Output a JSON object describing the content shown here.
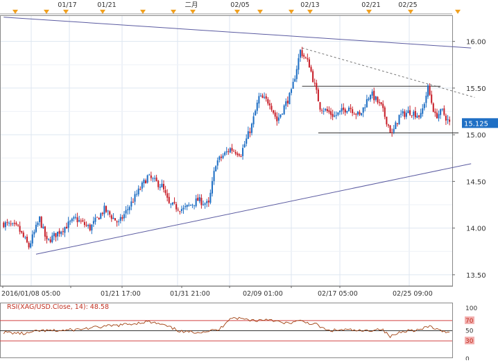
{
  "chart_data": [
    {
      "type": "candlestick",
      "instrument": "XAG/USD",
      "event_markers": [
        "01/17",
        "01/21",
        "二月",
        "02/05",
        "02/13",
        "02/21",
        "02/25"
      ],
      "x_tick_labels": [
        "2016/01/08 05:00",
        "01/21 17:00",
        "01/31 21:00",
        "02/09 01:00",
        "02/17 05:00",
        "02/25 09:00"
      ],
      "y_ticks": [
        13.5,
        14.0,
        14.5,
        15.0,
        15.5,
        16.0
      ],
      "y_tick_labels": [
        "13.50",
        "14.00",
        "14.50",
        "15.00",
        "15.50",
        "16.00"
      ],
      "ylim": [
        13.38,
        16.28
      ],
      "last_price": 15.125,
      "last_price_label": "15.125",
      "grid": true,
      "colors": {
        "up": "#1f6fc4",
        "down": "#c8202a",
        "trendline": "#5a5aa0",
        "level": "#333333",
        "marker": "#f0a020",
        "price_tag": "#1f6fc4"
      },
      "path_keypoints": [
        {
          "i": 0,
          "p": 14.05
        },
        {
          "i": 8,
          "p": 14.0
        },
        {
          "i": 14,
          "p": 13.8
        },
        {
          "i": 20,
          "p": 14.1
        },
        {
          "i": 24,
          "p": 13.85
        },
        {
          "i": 30,
          "p": 13.95
        },
        {
          "i": 40,
          "p": 14.1
        },
        {
          "i": 48,
          "p": 14.0
        },
        {
          "i": 56,
          "p": 14.2
        },
        {
          "i": 64,
          "p": 14.05
        },
        {
          "i": 72,
          "p": 14.3
        },
        {
          "i": 80,
          "p": 14.55
        },
        {
          "i": 88,
          "p": 14.45
        },
        {
          "i": 92,
          "p": 14.25
        },
        {
          "i": 100,
          "p": 14.2
        },
        {
          "i": 108,
          "p": 14.3
        },
        {
          "i": 114,
          "p": 14.25
        },
        {
          "i": 118,
          "p": 14.7
        },
        {
          "i": 126,
          "p": 14.85
        },
        {
          "i": 132,
          "p": 14.8
        },
        {
          "i": 138,
          "p": 15.1
        },
        {
          "i": 142,
          "p": 15.4
        },
        {
          "i": 148,
          "p": 15.35
        },
        {
          "i": 152,
          "p": 15.15
        },
        {
          "i": 160,
          "p": 15.45
        },
        {
          "i": 165,
          "p": 15.9
        },
        {
          "i": 170,
          "p": 15.75
        },
        {
          "i": 176,
          "p": 15.3
        },
        {
          "i": 184,
          "p": 15.2
        },
        {
          "i": 192,
          "p": 15.3
        },
        {
          "i": 198,
          "p": 15.2
        },
        {
          "i": 204,
          "p": 15.45
        },
        {
          "i": 210,
          "p": 15.3
        },
        {
          "i": 216,
          "p": 15.0
        },
        {
          "i": 220,
          "p": 15.2
        },
        {
          "i": 226,
          "p": 15.25
        },
        {
          "i": 232,
          "p": 15.2
        },
        {
          "i": 236,
          "p": 15.5
        },
        {
          "i": 240,
          "p": 15.2
        },
        {
          "i": 244,
          "p": 15.25
        },
        {
          "i": 248,
          "p": 15.12
        }
      ],
      "annotations": {
        "upper_trendline": [
          {
            "i": 0,
            "p": 16.26
          },
          {
            "i": 260,
            "p": 15.93
          }
        ],
        "lower_trendline": [
          {
            "i": 18,
            "p": 13.72
          },
          {
            "i": 260,
            "p": 14.69
          }
        ],
        "dashed_resistance": [
          {
            "i": 166,
            "p": 15.93
          },
          {
            "i": 262,
            "p": 15.4
          }
        ],
        "range_high": {
          "from_i": 166,
          "to_i": 243,
          "p": 15.52
        },
        "range_low": {
          "from_i": 175,
          "to_i": 253,
          "p": 15.02
        }
      }
    },
    {
      "type": "line",
      "label": "RSI(XAG/USD.Close, 14): 48.58",
      "y_tick_labels": [
        "100",
        "70",
        "50",
        "30",
        "0"
      ],
      "y_ticks": [
        100,
        70,
        50,
        30,
        0
      ],
      "levels": [
        70,
        50,
        30
      ],
      "colors": {
        "line": "#a04010",
        "level_70_30": "#d04040",
        "level_50": "#333333",
        "label": "#c03020"
      },
      "rsi_keypoints": [
        {
          "i": 0,
          "v": 47
        },
        {
          "i": 12,
          "v": 44
        },
        {
          "i": 20,
          "v": 50
        },
        {
          "i": 30,
          "v": 50
        },
        {
          "i": 40,
          "v": 52
        },
        {
          "i": 55,
          "v": 58
        },
        {
          "i": 70,
          "v": 63
        },
        {
          "i": 80,
          "v": 68
        },
        {
          "i": 88,
          "v": 62
        },
        {
          "i": 100,
          "v": 47
        },
        {
          "i": 110,
          "v": 48
        },
        {
          "i": 120,
          "v": 52
        },
        {
          "i": 126,
          "v": 76
        },
        {
          "i": 132,
          "v": 74
        },
        {
          "i": 140,
          "v": 70
        },
        {
          "i": 148,
          "v": 73
        },
        {
          "i": 156,
          "v": 64
        },
        {
          "i": 165,
          "v": 69
        },
        {
          "i": 174,
          "v": 62
        },
        {
          "i": 180,
          "v": 50
        },
        {
          "i": 190,
          "v": 52
        },
        {
          "i": 200,
          "v": 49
        },
        {
          "i": 210,
          "v": 54
        },
        {
          "i": 215,
          "v": 38
        },
        {
          "i": 222,
          "v": 50
        },
        {
          "i": 232,
          "v": 52
        },
        {
          "i": 237,
          "v": 59
        },
        {
          "i": 243,
          "v": 49
        },
        {
          "i": 248,
          "v": 48.58
        }
      ]
    }
  ]
}
